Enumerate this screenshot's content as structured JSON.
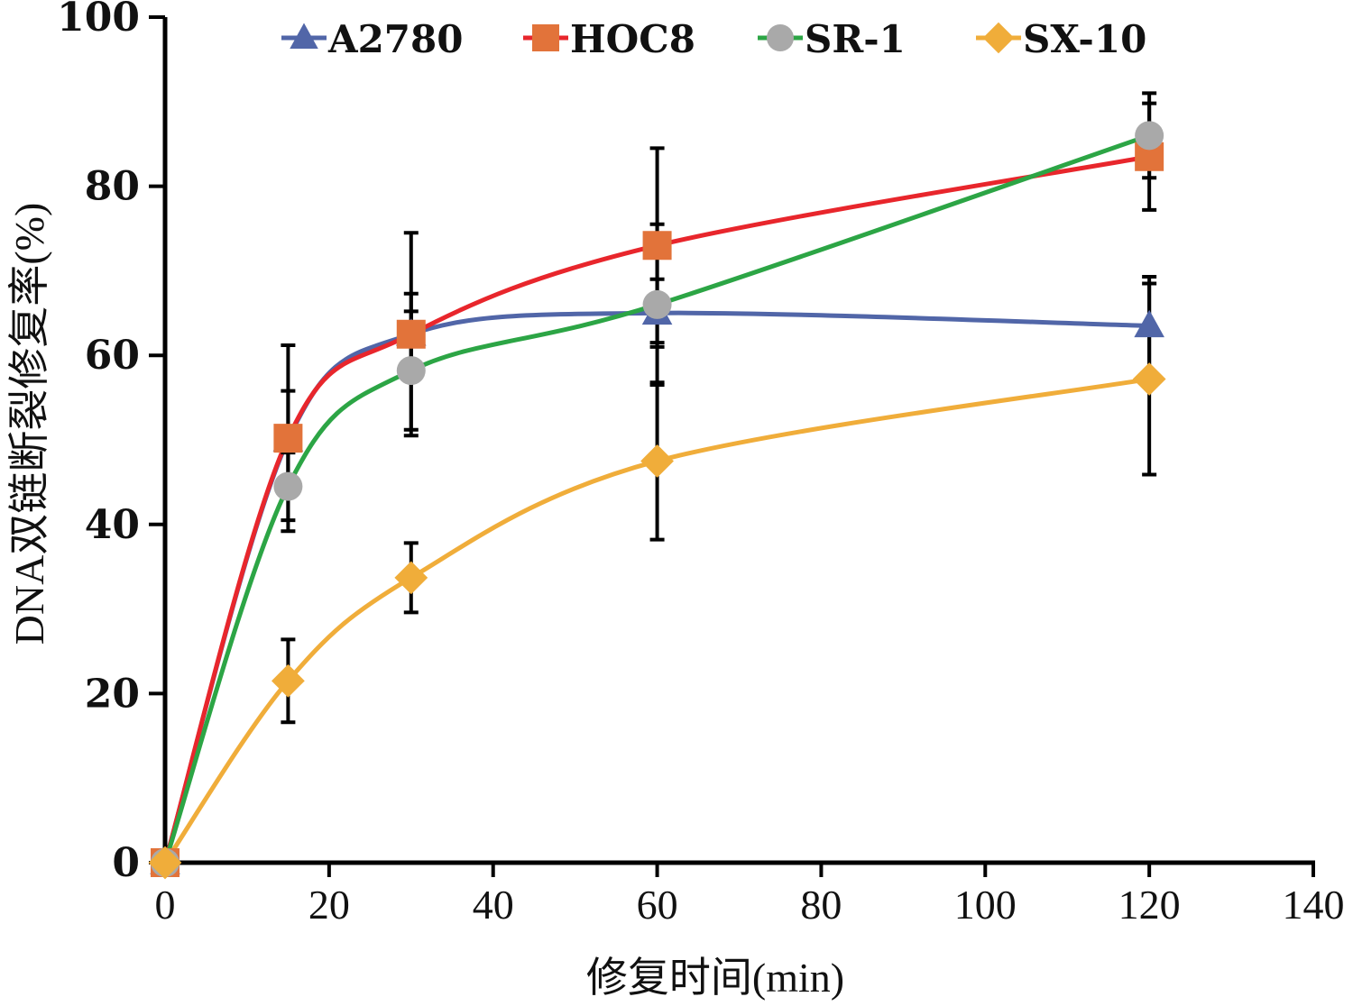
{
  "chart_data": {
    "type": "line",
    "title": "",
    "xlabel": "修复时间(min)",
    "ylabel": "DNA双链断裂修复率(%)",
    "xlim": [
      0,
      140
    ],
    "ylim": [
      0,
      100
    ],
    "xticks": [
      0,
      20,
      40,
      60,
      80,
      100,
      120,
      140
    ],
    "yticks": [
      0,
      20,
      40,
      60,
      80,
      100
    ],
    "grid": false,
    "legend_position": "top",
    "x": [
      0,
      15,
      30,
      60,
      120
    ],
    "series": [
      {
        "name": "A2780",
        "color": "#5166a8",
        "marker": "triangle",
        "values": [
          0,
          50.0,
          62.5,
          65.0,
          63.5
        ],
        "errors": [
          0,
          5.8,
          4.8,
          4.0,
          5.8
        ]
      },
      {
        "name": "HOC8",
        "color": "#e8262c",
        "marker_color": "#e2733a",
        "marker": "square",
        "values": [
          0,
          50.2,
          62.5,
          73.0,
          83.5
        ],
        "errors": [
          0,
          11.0,
          12.0,
          11.5,
          6.3
        ]
      },
      {
        "name": "SR-1",
        "color": "#2ca545",
        "marker_color": "#a9a9a9",
        "marker": "circle",
        "values": [
          0,
          44.5,
          58.2,
          66.0,
          86.0
        ],
        "errors": [
          0,
          4.0,
          7.0,
          9.5,
          5.0
        ]
      },
      {
        "name": "SX-10",
        "color": "#f0ad3a",
        "marker": "diamond",
        "values": [
          0,
          21.5,
          33.7,
          47.5,
          57.2
        ],
        "errors": [
          0,
          4.9,
          4.1,
          9.3,
          11.3
        ]
      }
    ]
  }
}
